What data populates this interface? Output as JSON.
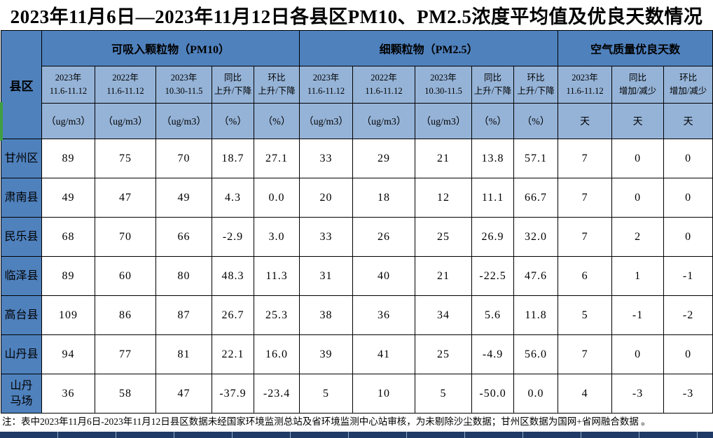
{
  "page": {
    "title": "2023年11月6日—2023年11月12日各县区PM10、PM2.5浓度平均值及优良天数情况",
    "footnote": "注：表中2023年11月6日-2023年11月12日县区数据未经国家环境监测总站及省环境监测中心站审核，为未剔除沙尘数据；甘州区数据为国网+省网融合数据 。"
  },
  "table": {
    "corner_header": "县区",
    "groups": [
      {
        "label": "可吸入颗粒物（PM10）",
        "span": 5
      },
      {
        "label": "细颗粒物（PM2.5）",
        "span": 5
      },
      {
        "label": "空气质量优良天数",
        "span": 3
      }
    ],
    "columns": [
      {
        "period_line1": "2023年",
        "period_line2": "11.6-11.12",
        "unit": "（ug/m3）"
      },
      {
        "period_line1": "2022年",
        "period_line2": "11.6-11.12",
        "unit": "（ug/m3）"
      },
      {
        "period_line1": "2023年",
        "period_line2": "10.30-11.5",
        "unit": "（ug/m3）"
      },
      {
        "period_line1": "同比",
        "period_line2": "上升/下降",
        "unit": "（%）"
      },
      {
        "period_line1": "环比",
        "period_line2": "上升/下降",
        "unit": "（%）"
      },
      {
        "period_line1": "2023年",
        "period_line2": "11.6-11.12",
        "unit": "（ug/m3）"
      },
      {
        "period_line1": "2022年",
        "period_line2": "11.6-11.12",
        "unit": "（ug/m3）"
      },
      {
        "period_line1": "2023年",
        "period_line2": "10.30-11.5",
        "unit": "（ug/m3）"
      },
      {
        "period_line1": "同比",
        "period_line2": "上升/下降",
        "unit": "（%）"
      },
      {
        "period_line1": "环比",
        "period_line2": "上升/下降",
        "unit": "（%）"
      },
      {
        "period_line1": "2023年",
        "period_line2": "11.6-11.12",
        "unit": "天"
      },
      {
        "period_line1": "同比",
        "period_line2": "增加/减少",
        "unit": "天"
      },
      {
        "period_line1": "环比",
        "period_line2": "增加/减少",
        "unit": "天"
      }
    ],
    "rows": [
      {
        "name": "甘州区",
        "values": [
          "89",
          "75",
          "70",
          "18.7",
          "27.1",
          "33",
          "29",
          "21",
          "13.8",
          "57.1",
          "7",
          "0",
          "0"
        ]
      },
      {
        "name": "肃南县",
        "values": [
          "49",
          "47",
          "49",
          "4.3",
          "0.0",
          "20",
          "18",
          "12",
          "11.1",
          "66.7",
          "7",
          "0",
          "0"
        ]
      },
      {
        "name": "民乐县",
        "values": [
          "68",
          "70",
          "66",
          "-2.9",
          "3.0",
          "33",
          "26",
          "25",
          "26.9",
          "32.0",
          "7",
          "2",
          "0"
        ]
      },
      {
        "name": "临泽县",
        "values": [
          "89",
          "60",
          "80",
          "48.3",
          "11.3",
          "31",
          "40",
          "21",
          "-22.5",
          "47.6",
          "6",
          "1",
          "-1"
        ]
      },
      {
        "name": "高台县",
        "values": [
          "109",
          "86",
          "87",
          "26.7",
          "25.3",
          "38",
          "36",
          "34",
          "5.6",
          "11.8",
          "5",
          "-1",
          "-2"
        ]
      },
      {
        "name": "山丹县",
        "values": [
          "94",
          "77",
          "81",
          "22.1",
          "16.0",
          "39",
          "41",
          "25",
          "-4.9",
          "56.0",
          "7",
          "0",
          "0"
        ]
      },
      {
        "name": "山丹\n马场",
        "values": [
          "36",
          "58",
          "47",
          "-37.9",
          "-23.4",
          "5",
          "10",
          "5",
          "-50.0",
          "0.0",
          "4",
          "-3",
          "-3"
        ]
      }
    ]
  },
  "colors": {
    "group_header_bg": "#4f81bd",
    "sub_header_bg": "#95b3d7",
    "county_col_bg": "#4f81bd",
    "bottom_strip_bg": "#1f3a66",
    "border": "#000000",
    "left_accent_green": "#3f9e42"
  }
}
